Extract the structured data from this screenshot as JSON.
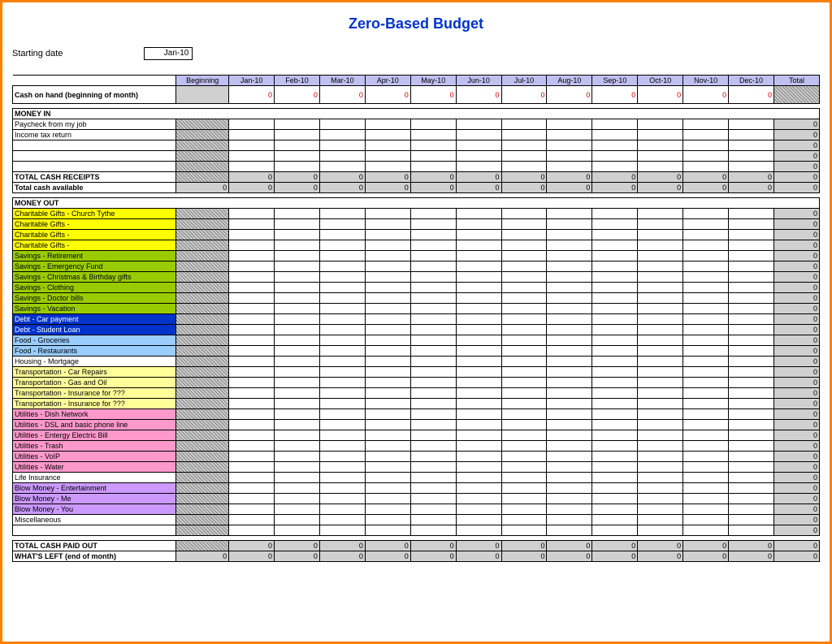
{
  "title": "Zero-Based Budget",
  "starting_date_label": "Starting date",
  "starting_date_value": "Jan-10",
  "columns": [
    "Beginning",
    "Jan-10",
    "Feb-10",
    "Mar-10",
    "Apr-10",
    "May-10",
    "Jun-10",
    "Jul-10",
    "Aug-10",
    "Sep-10",
    "Oct-10",
    "Nov-10",
    "Dec-10",
    "Total"
  ],
  "cash_on_hand_label": "Cash on hand (beginning of month)",
  "cash_on_hand_values": [
    "0",
    "0",
    "0",
    "0",
    "0",
    "0",
    "0",
    "0",
    "0",
    "0",
    "0",
    "0"
  ],
  "money_in_label": "MONEY IN",
  "money_in_rows": [
    {
      "label": "Paycheck from my job",
      "total": "0"
    },
    {
      "label": "Income tax return",
      "total": "0"
    },
    {
      "label": "",
      "total": "0"
    },
    {
      "label": "",
      "total": "0"
    },
    {
      "label": "",
      "total": "0"
    }
  ],
  "total_cash_receipts_label": "TOTAL CASH RECEIPTS",
  "total_cash_receipts_values": [
    "0",
    "0",
    "0",
    "0",
    "0",
    "0",
    "0",
    "0",
    "0",
    "0",
    "0",
    "0",
    "0"
  ],
  "total_cash_available_label": "Total cash available",
  "total_cash_available_values": [
    "0",
    "0",
    "0",
    "0",
    "0",
    "0",
    "0",
    "0",
    "0",
    "0",
    "0",
    "0",
    "0",
    "0"
  ],
  "money_out_label": "MONEY OUT",
  "money_out_rows": [
    {
      "label": "Charitable Gifts - Church Tythe",
      "color": "#ffff00",
      "total": "0"
    },
    {
      "label": "Charitable Gifts -",
      "color": "#ffff00",
      "total": "0"
    },
    {
      "label": "Charitable Gifts -",
      "color": "#ffff00",
      "total": "0"
    },
    {
      "label": "Charitable Gifts -",
      "color": "#ffff00",
      "total": "0"
    },
    {
      "label": "Savings - Retirement",
      "color": "#99cc00",
      "total": "0"
    },
    {
      "label": "Savings - Emergency Fund",
      "color": "#99cc00",
      "total": "0"
    },
    {
      "label": "Savings - Christmas & Birthday gifts",
      "color": "#99cc00",
      "total": "0"
    },
    {
      "label": "Savings - Clothing",
      "color": "#99cc00",
      "total": "0"
    },
    {
      "label": "Savings - Doctor bills",
      "color": "#99cc00",
      "total": "0"
    },
    {
      "label": "Savings - Vacation",
      "color": "#99cc00",
      "total": "0"
    },
    {
      "label": "Debt - Car payment",
      "color": "#0033cc",
      "textcolor": "#fff",
      "total": "0"
    },
    {
      "label": "Debt - Student Loan",
      "color": "#0033cc",
      "textcolor": "#fff",
      "total": "0"
    },
    {
      "label": "Food - Groceries",
      "color": "#99ccff",
      "total": "0"
    },
    {
      "label": "Food - Restaurants",
      "color": "#99ccff",
      "total": "0"
    },
    {
      "label": "Housing - Mortgage",
      "color": "",
      "total": "0"
    },
    {
      "label": "Transportation - Car Repairs",
      "color": "#ffff99",
      "total": "0"
    },
    {
      "label": "Transportation - Gas and Oil",
      "color": "#ffff99",
      "total": "0"
    },
    {
      "label": "Transportation - Insurance for ???",
      "color": "#ffff99",
      "total": "0"
    },
    {
      "label": "Transportation - Insurance for ???",
      "color": "#ffff99",
      "total": "0"
    },
    {
      "label": "Utilities - Dish Network",
      "color": "#ff99cc",
      "total": "0"
    },
    {
      "label": "Utilities - DSL and basic phone line",
      "color": "#ff99cc",
      "total": "0"
    },
    {
      "label": "Utilities - Entergy Electric Bill",
      "color": "#ff99cc",
      "total": "0"
    },
    {
      "label": "Utilities - Trash",
      "color": "#ff99cc",
      "total": "0"
    },
    {
      "label": "Utilities - VoIP",
      "color": "#ff99cc",
      "total": "0"
    },
    {
      "label": "Utilities - Water",
      "color": "#ff99cc",
      "total": "0"
    },
    {
      "label": "Life Insurance",
      "color": "",
      "total": "0"
    },
    {
      "label": "Blow Money - Entertainment",
      "color": "#cc99ff",
      "total": "0"
    },
    {
      "label": "Blow Money - Me",
      "color": "#cc99ff",
      "total": "0"
    },
    {
      "label": "Blow Money - You",
      "color": "#cc99ff",
      "total": "0"
    },
    {
      "label": "Miscellaneous",
      "color": "",
      "total": "0"
    },
    {
      "label": "",
      "color": "",
      "total": "0"
    }
  ],
  "total_cash_paid_out_label": "TOTAL CASH PAID OUT",
  "total_cash_paid_out_values": [
    "0",
    "0",
    "0",
    "0",
    "0",
    "0",
    "0",
    "0",
    "0",
    "0",
    "0",
    "0",
    "0"
  ],
  "whats_left_label": "WHAT'S LEFT (end of month)",
  "whats_left_values": [
    "0",
    "0",
    "0",
    "0",
    "0",
    "0",
    "0",
    "0",
    "0",
    "0",
    "0",
    "0",
    "0",
    "0"
  ],
  "colors": {
    "header_bg": "#c0c0f0",
    "grey": "#d0d0d0",
    "border": "#ff8000",
    "title": "#0033cc",
    "red": "#c00"
  }
}
